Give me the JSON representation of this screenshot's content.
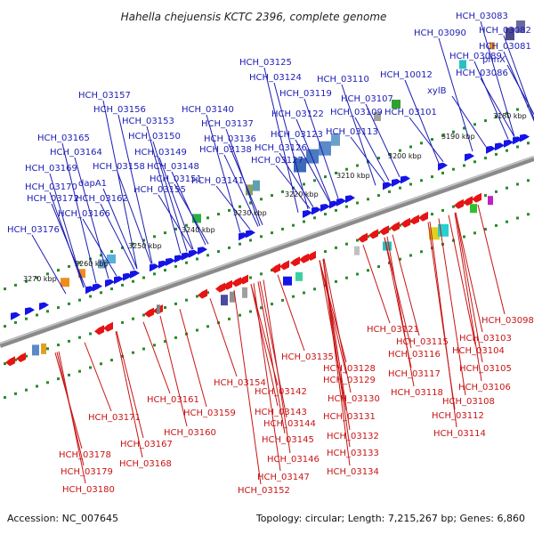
{
  "title": "Hahella chejuensis KCTC 2396, complete genome",
  "footer": {
    "accession": "Accession: NC_007645",
    "summary": "Topology: circular; Length: 7,215,267 bp; Genes: 6,860"
  },
  "kbp_ticks": [
    "3180 kbp",
    "3190 kbp",
    "3200 kbp",
    "3210 kbp",
    "3220 kbp",
    "3230 kbp",
    "3240 kbp",
    "3250 kbp",
    "3260 kbp",
    "3270 kbp"
  ],
  "top_labels": [
    "HCH_03083",
    "HCH_03090",
    "HCH_03082",
    "HCH_03081",
    "HCH_03089",
    "phnX",
    "HCH_03086",
    "HCH_10012",
    "xylB",
    "HCH_03110",
    "HCH_03107",
    "HCH_03109",
    "HCH_03101",
    "HCH_03113",
    "HCH_03125",
    "HCH_03124",
    "HCH_03119",
    "HCH_03122",
    "HCH_03123",
    "HCH_03126",
    "HCH_03127",
    "HCH_03140",
    "HCH_03137",
    "HCH_03136",
    "HCH_03138",
    "HCH_03141",
    "HCH_03157",
    "HCH_03156",
    "HCH_03153",
    "HCH_03150",
    "HCH_03149",
    "HCH_03148",
    "HCH_03151",
    "HCH_03155",
    "HCH_03165",
    "HCH_03164",
    "HCH_03158",
    "HCH_03169",
    "dapA1",
    "HCH_03170",
    "HCH_03172",
    "HCH_03162",
    "HCH_03166",
    "HCH_03176"
  ],
  "bottom_labels": [
    "HCH_03098",
    "HCH_03103",
    "HCH_03104",
    "HCH_03105",
    "HCH_03106",
    "HCH_03108",
    "HCH_03112",
    "HCH_03114",
    "HCH_03121",
    "HCH_03115",
    "HCH_03116",
    "HCH_03117",
    "HCH_03118",
    "HCH_03135",
    "HCH_03128",
    "HCH_03129",
    "HCH_03130",
    "HCH_03131",
    "HCH_03132",
    "HCH_03133",
    "HCH_03134",
    "HCH_03154",
    "HCH_03142",
    "HCH_03143",
    "HCH_03144",
    "HCH_03145",
    "HCH_03146",
    "HCH_03147",
    "HCH_03152",
    "HCH_03161",
    "HCH_03159",
    "HCH_03160",
    "HCH_03171",
    "HCH_03167",
    "HCH_03168",
    "HCH_03178",
    "HCH_03179",
    "HCH_03180"
  ],
  "colors": {
    "forward_gene": "#1414e6",
    "reverse_gene": "#e61414",
    "backbone": "#888888",
    "tick": "#2a8a2a"
  }
}
